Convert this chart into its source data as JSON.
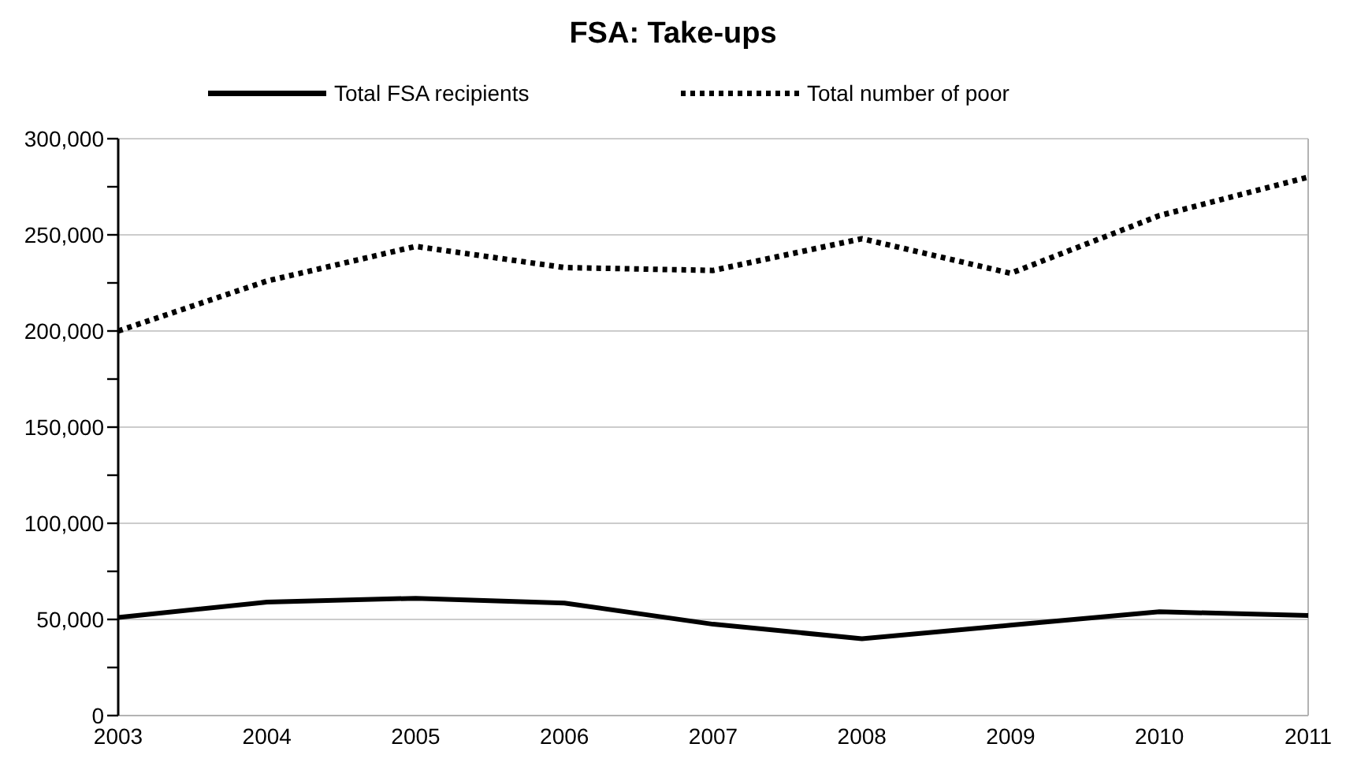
{
  "chart_data": {
    "type": "line",
    "title": "FSA: Take-ups",
    "x": [
      2003,
      2004,
      2005,
      2006,
      2007,
      2008,
      2009,
      2010,
      2011
    ],
    "xlim": [
      2003,
      2011
    ],
    "xticks": [
      2003,
      2004,
      2005,
      2006,
      2007,
      2008,
      2009,
      2010,
      2011
    ],
    "ylim": [
      0,
      300000
    ],
    "yticks": [
      {
        "value": 0,
        "label": "0"
      },
      {
        "value": 25000,
        "label": null
      },
      {
        "value": 50000,
        "label": "50,000"
      },
      {
        "value": 75000,
        "label": null
      },
      {
        "value": 100000,
        "label": "100,000"
      },
      {
        "value": 125000,
        "label": null
      },
      {
        "value": 150000,
        "label": "150,000"
      },
      {
        "value": 175000,
        "label": null
      },
      {
        "value": 200000,
        "label": "200,000"
      },
      {
        "value": 225000,
        "label": null
      },
      {
        "value": 250000,
        "label": "250,000"
      },
      {
        "value": 275000,
        "label": null
      },
      {
        "value": 300000,
        "label": "300,000"
      }
    ],
    "grid": "y",
    "legend": "top",
    "marker": "none",
    "series": [
      {
        "name": "Total FSA recipients",
        "color": "#000000",
        "line_style": "solid",
        "values": [
          51000,
          59000,
          61000,
          58500,
          47500,
          40000,
          47000,
          54000,
          52000
        ]
      },
      {
        "name": "Total number of poor",
        "color": "#000000",
        "line_style": "dotted",
        "values": [
          200000,
          226000,
          244000,
          233000,
          231500,
          248000,
          230000,
          260000,
          280000
        ]
      }
    ]
  }
}
